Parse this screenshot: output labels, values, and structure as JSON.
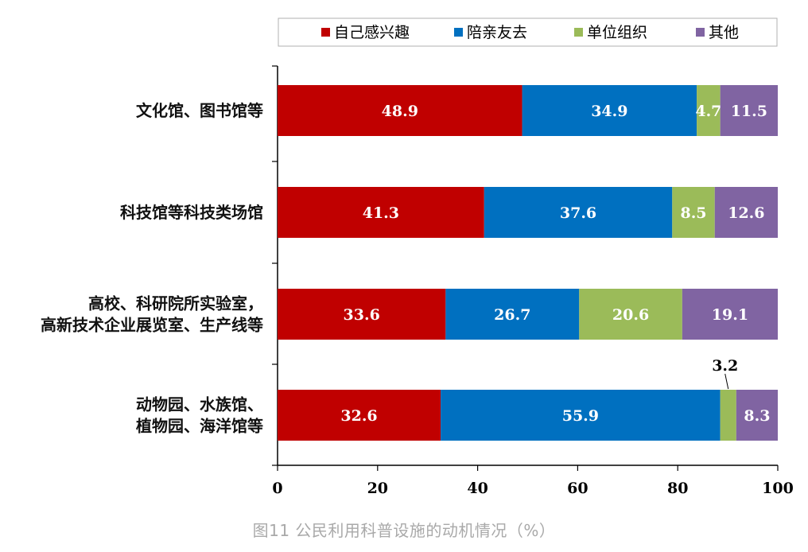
{
  "caption": "图11 公民利用科普设施的动机情况（%）",
  "chart_data": {
    "type": "bar",
    "orientation": "horizontal",
    "stacked": true,
    "categories": [
      [
        "文化馆、图书馆等"
      ],
      [
        "科技馆等科技类场馆"
      ],
      [
        "高校、科研院所实验室，",
        "高新技术企业展览室、生产线等"
      ],
      [
        "动物园、水族馆、",
        "植物园、海洋馆等"
      ]
    ],
    "series": [
      {
        "name": "自己感兴趣",
        "color": "#c00000",
        "values": [
          48.9,
          41.3,
          33.6,
          32.6
        ]
      },
      {
        "name": "陪亲友去",
        "color": "#0070c0",
        "values": [
          34.9,
          37.6,
          26.7,
          55.9
        ]
      },
      {
        "name": "单位组织",
        "color": "#9bbb59",
        "values": [
          4.7,
          8.5,
          20.6,
          3.2
        ]
      },
      {
        "name": "其他",
        "color": "#8064a2",
        "values": [
          11.5,
          12.6,
          19.1,
          8.3
        ]
      }
    ],
    "xlim": [
      0,
      100
    ],
    "xticks": [
      "0",
      "20",
      "40",
      "60",
      "80",
      "100"
    ],
    "legend_position": "top",
    "grid": false
  }
}
